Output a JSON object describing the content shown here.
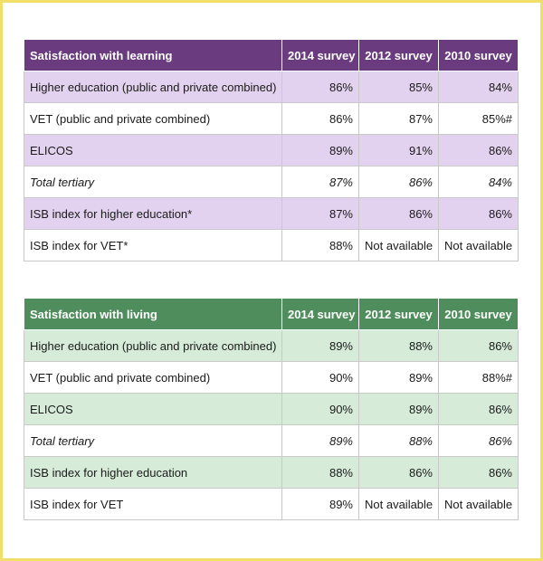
{
  "learning": {
    "headers": [
      "Satisfaction with learning",
      "2014 survey",
      "2012 survey",
      "2010 survey"
    ],
    "rows": [
      [
        "Higher education (public and private combined)",
        "86%",
        "85%",
        "84%"
      ],
      [
        "VET (public and private combined)",
        "86%",
        "87%",
        "85%#"
      ],
      [
        "ELICOS",
        "89%",
        "91%",
        "86%"
      ],
      [
        "Total tertiary",
        "87%",
        "86%",
        "84%"
      ],
      [
        "ISB index for higher education*",
        "87%",
        "86%",
        "86%"
      ],
      [
        "ISB index for VET*",
        "88%",
        "Not available",
        "Not available"
      ]
    ]
  },
  "living": {
    "headers": [
      "Satisfaction with living",
      "2014 survey",
      "2012 survey",
      "2010 survey"
    ],
    "rows": [
      [
        "Higher education (public and private combined)",
        "89%",
        "88%",
        "86%"
      ],
      [
        "VET (public and private combined)",
        "90%",
        "89%",
        "88%#"
      ],
      [
        "ELICOS",
        "90%",
        "89%",
        "86%"
      ],
      [
        "Total tertiary",
        "89%",
        "88%",
        "86%"
      ],
      [
        "ISB index for higher education",
        "88%",
        "86%",
        "86%"
      ],
      [
        "ISB index for VET",
        "89%",
        "Not available",
        "Not available"
      ]
    ]
  },
  "colors": {
    "learning_header": "#6a3b7e",
    "learning_shade": "#e3d2ef",
    "living_header": "#4f8e5c",
    "living_shade": "#d6ecd9",
    "frame_border": "#f2df6a"
  }
}
